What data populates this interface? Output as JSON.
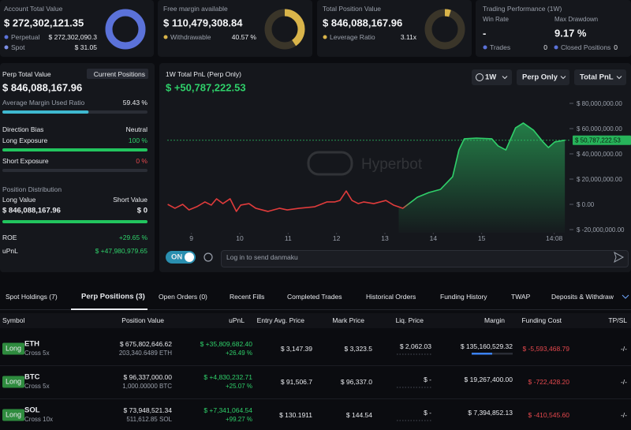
{
  "summary": {
    "account": {
      "label": "Account Total Value",
      "value": "$ 272,302,121.35",
      "rows": [
        {
          "label": "Perpetual",
          "value": "$ 272,302,090.3"
        },
        {
          "label": "Spot",
          "value": "$ 31.05"
        }
      ]
    },
    "free_margin": {
      "label": "Free margin available",
      "value": "$ 110,479,308.84",
      "rows": [
        {
          "label": "Withdrawable",
          "value": "40.57 %"
        }
      ]
    },
    "position": {
      "label": "Total Position Value",
      "value": "$ 846,088,167.96",
      "rows": [
        {
          "label": "Leverage Ratio",
          "value": "3.11x"
        }
      ]
    },
    "performance": {
      "title": "Trading Performance (1W)",
      "win_rate_label": "Win Rate",
      "win_rate": "-",
      "drawdown_label": "Max Drawdown",
      "drawdown": "9.17 %",
      "trades_label": "Trades",
      "trades": "0",
      "closed_label": "Closed Positions",
      "closed": "0"
    }
  },
  "perp": {
    "title": "Perp Total Value",
    "button": "Current Positions",
    "value": "$ 846,088,167.96",
    "margin_label": "Average Margin Used Ratio",
    "margin_value": "59.43 %",
    "bias_label": "Direction Bias",
    "bias": "Neutral",
    "long_label": "Long Exposure",
    "long": "100 %",
    "short_label": "Short Exposure",
    "short": "0 %",
    "distribution_title": "Position Distribution",
    "long_value_label": "Long Value",
    "short_value_label": "Short Value",
    "long_value": "$ 846,088,167.96",
    "short_value": "$ 0",
    "roe_label": "ROE",
    "roe": "+29.65 %",
    "upnl_label": "uPnL",
    "upnl": "$ +47,980,979.65"
  },
  "chart_controls": {
    "range": "1W",
    "scope": "Perp Only",
    "metric": "Total PnL",
    "watermark": "Hyperbot",
    "toggle": "ON",
    "input_placeholder": "Log in to send danmaku"
  },
  "chart_data": {
    "type": "line",
    "title": "1W Total PnL (Perp Only)",
    "subtitle": "$ +50,787,222.53",
    "x": [
      8.51,
      8.66,
      8.82,
      8.95,
      9.11,
      9.28,
      9.41,
      9.52,
      9.65,
      9.8,
      9.93,
      10.02,
      10.19,
      10.33,
      10.58,
      10.82,
      10.98,
      11.23,
      11.55,
      11.8,
      11.96,
      12.07,
      12.2,
      12.32,
      12.45,
      12.56,
      12.77,
      13.02,
      13.18,
      13.37,
      13.5,
      13.67,
      13.91,
      14.15,
      14.4,
      14.53,
      14.64,
      14.89,
      15.21,
      15.34,
      15.5,
      15.7,
      15.86,
      16.07,
      16.27,
      16.38,
      16.51,
      16.72
    ],
    "series": [
      {
        "color": "#2fd06a",
        "values": [
          0,
          -3100000,
          0,
          -4400000,
          -1900000,
          1900000,
          -600000,
          4400000,
          600000,
          4400000,
          -5600000,
          -600000,
          600000,
          -3100000,
          -5600000,
          -3100000,
          -4400000,
          -3100000,
          -1900000,
          1900000,
          1900000,
          3100000,
          10600000,
          3100000,
          600000,
          1900000,
          600000,
          3100000,
          -600000,
          -3100000,
          600000,
          5600000,
          9400000,
          11900000,
          21900000,
          43100000,
          51900000,
          52500000,
          51900000,
          46300000,
          43100000,
          60600000,
          64400000,
          58800000,
          49400000,
          45000000,
          49400000,
          50800000
        ]
      }
    ],
    "early_color": "#e03b3b",
    "reference": {
      "value": 50787222.53,
      "label": "$ 50,787,222.53"
    },
    "xlim": [
      8.5,
      16.75
    ],
    "xticks": [
      9,
      10,
      11,
      12,
      13,
      14,
      15,
      {
        "value": 16.5,
        "label": "14:08"
      }
    ],
    "ylim": [
      -22500000,
      86875000
    ],
    "yticks": [
      {
        "value": 80000000,
        "label": "$ 80,000,000.00"
      },
      {
        "value": 60000000,
        "label": "$ 60,000,000.00"
      },
      {
        "value": 40000000,
        "label": "$ 40,000,000.00"
      },
      {
        "value": 20000000,
        "label": "$ 20,000,000.00"
      },
      {
        "value": 0,
        "label": "$ 0.00"
      },
      {
        "value": -20000000,
        "label": "$ -20,000,000.00"
      }
    ]
  },
  "tabs": {
    "items": [
      "Spot Holdings (7)",
      "Perp Positions (3)",
      "Open Orders (0)",
      "Recent Fills",
      "Completed Trades",
      "Historical Orders",
      "Funding History",
      "TWAP",
      "Deposits & Withdraw"
    ],
    "active": 1
  },
  "table": {
    "columns": [
      "Symbol",
      "Position Value",
      "uPnL",
      "Entry Avg. Price",
      "Mark Price",
      "Liq. Price",
      "Margin",
      "Funding Cost",
      "TP/SL"
    ],
    "rows": [
      {
        "side": "Long",
        "symbol": "ETH",
        "leverage": "Cross 5x",
        "value": "$ 675,802,646.62",
        "size": "203,340.6489 ETH",
        "upnl": "$ +35,809,682.40",
        "upnl_pct": "+26.49 %",
        "entry": "$ 3,147.39",
        "mark": "$ 3,323.5",
        "liq": "$ 2,062.03",
        "margin": "$ 135,160,529.32",
        "funding": "$ -5,593,468.79",
        "tpsl": "-/-"
      },
      {
        "side": "Long",
        "symbol": "BTC",
        "leverage": "Cross 5x",
        "value": "$ 96,337,000.00",
        "size": "1,000.00000 BTC",
        "upnl": "$ +4,830,232.71",
        "upnl_pct": "+25.07 %",
        "entry": "$ 91,506.7",
        "mark": "$ 96,337.0",
        "liq": "$ -",
        "margin": "$ 19,267,400.00",
        "funding": "$ -722,428.20",
        "tpsl": "-/-"
      },
      {
        "side": "Long",
        "symbol": "SOL",
        "leverage": "Cross 10x",
        "value": "$ 73,948,521.34",
        "size": "511,612.85 SOL",
        "upnl": "$ +7,341,064.54",
        "upnl_pct": "+99.27 %",
        "entry": "$ 130.1911",
        "mark": "$ 144.54",
        "liq": "$ -",
        "margin": "$ 7,394,852.13",
        "funding": "$ -410,545.60",
        "tpsl": "-/-"
      }
    ]
  }
}
